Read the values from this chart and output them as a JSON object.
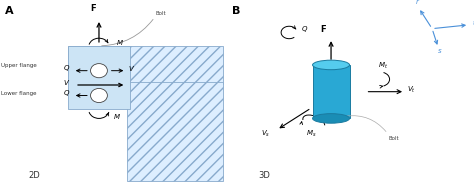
{
  "bg_color": "#ffffff",
  "hatch_color": "#aac4dd",
  "bolt_2d_color": "#cce4f5",
  "bolt_3d_color": "#29a8d4",
  "arrow_color": "#000000",
  "label_color": "#000000",
  "axis_color": "#4a90d9",
  "panel_A_label": "A",
  "panel_B_label": "B",
  "label_2D": "2D",
  "label_3D": "3D",
  "upper_flange": "Upper flange",
  "lower_flange": "Lower flange",
  "bolt_label_2d": "Bolt",
  "bolt_label_3d": "Bolt",
  "struct_face": "#ddeeff",
  "struct_edge": "#88aacc"
}
